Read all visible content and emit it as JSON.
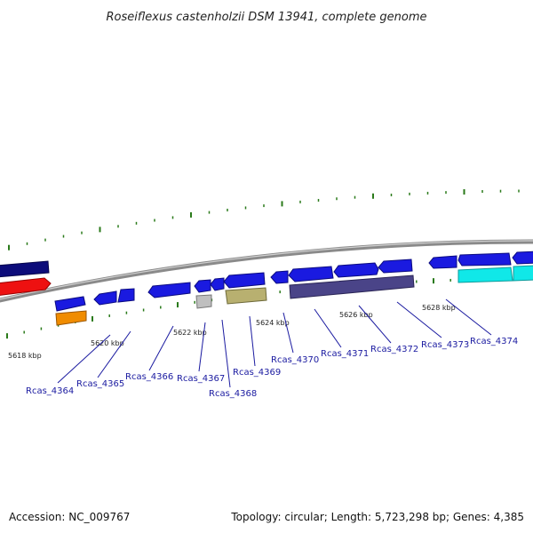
{
  "title": "Roseiflexus castenholzii DSM 13941, complete genome",
  "kbp_labels": [
    "5618 kbp",
    "5620 kbp",
    "5622 kbp",
    "5624 kbp",
    "5626 kbp",
    "5628 kbp"
  ],
  "gene_labels": [
    "Rcas_4364",
    "Rcas_4365",
    "Rcas_4366",
    "Rcas_4367",
    "Rcas_4368",
    "Rcas_4369",
    "Rcas_4370",
    "Rcas_4371",
    "Rcas_4372",
    "Rcas_4373",
    "Rcas_4374"
  ],
  "footer": {
    "accession": "Accession: NC_009767",
    "summary": "Topology: circular; Length: 5,723,298 bp; Genes: 4,385"
  },
  "colors": {
    "backbone": "#8a8a8a",
    "tick": "#2a7a1a",
    "blue": "#1a1ae0",
    "navy": "#0c0c7a",
    "red": "#ee1111",
    "orange": "#f08c00",
    "gray": "#bfbfbf",
    "olive": "#b8b070",
    "slate": "#4a4488",
    "cyan": "#10e8e8",
    "leader": "#1a1aa0"
  }
}
